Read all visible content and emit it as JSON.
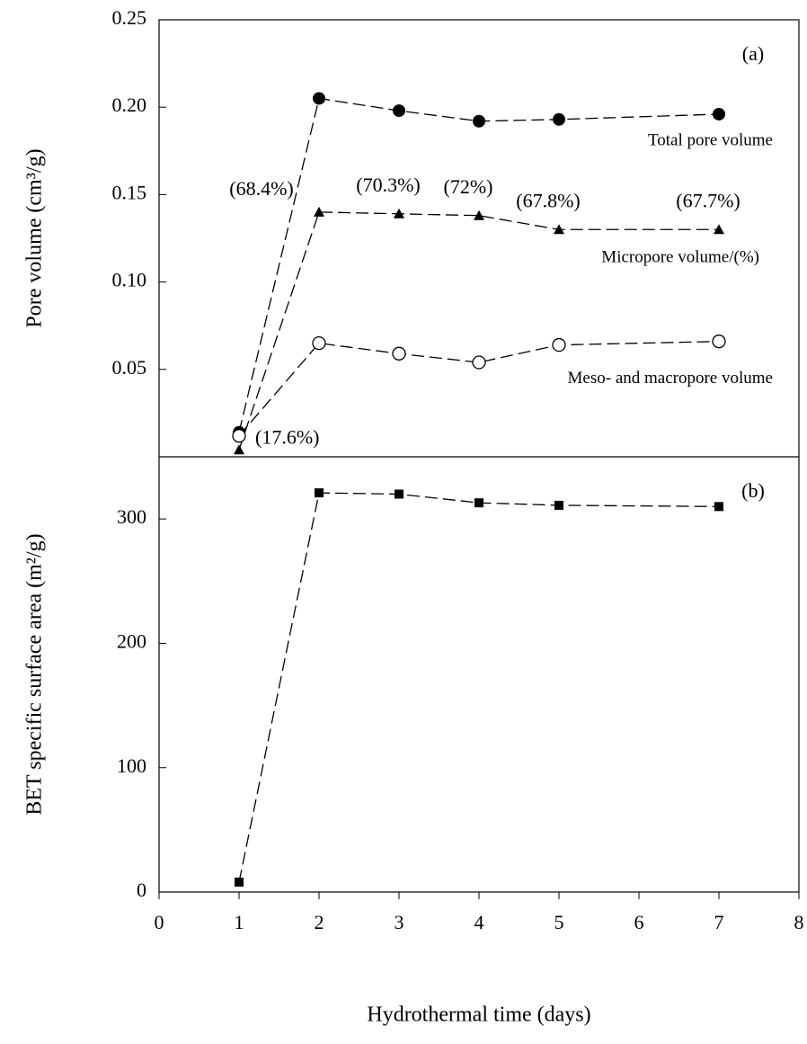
{
  "chart_data": [
    {
      "type": "line",
      "panel_label": "(a)",
      "ylabel": "Pore volume (cm³/g)",
      "x": [
        1,
        2,
        3,
        4,
        5,
        7
      ],
      "series": [
        {
          "name": "Total pore volume",
          "color": "#000000",
          "marker": "circle",
          "values": [
            0.014,
            0.205,
            0.198,
            0.192,
            0.193,
            0.196
          ]
        },
        {
          "name": "Micropore volume/(%)",
          "color": "#000000",
          "marker": "triangle",
          "values": [
            0.004,
            0.14,
            0.139,
            0.138,
            0.13,
            0.13
          ],
          "point_labels": [
            "(17.6%)",
            "(68.4%)",
            "(70.3%)",
            "(72%)",
            "(67.8%)",
            "(67.7%)"
          ]
        },
        {
          "name": "Meso- and macropore volume",
          "color": "#000000",
          "marker": "open-circle",
          "values": [
            0.012,
            0.065,
            0.059,
            0.054,
            0.064,
            0.066
          ]
        }
      ],
      "xlim": [
        0,
        8
      ],
      "ylim": [
        0,
        0.25
      ],
      "yticks": [
        0.05,
        {
          "value": 0.1,
          "label": "0.10"
        },
        0.15,
        {
          "value": 0.2,
          "label": "0.20"
        },
        0.25
      ]
    },
    {
      "type": "line",
      "panel_label": "(b)",
      "ylabel": "BET specific surface area (m²/g)",
      "xlabel": "Hydrothermal time (days)",
      "x": [
        1,
        2,
        3,
        4,
        5,
        7
      ],
      "series": [
        {
          "color": "#000000",
          "marker": "square",
          "values": [
            8,
            321,
            320,
            313,
            311,
            310
          ]
        }
      ],
      "xlim": [
        0,
        8
      ],
      "ylim": [
        0,
        350
      ],
      "xticks": [
        0,
        1,
        2,
        3,
        4,
        5,
        6,
        7,
        8
      ],
      "yticks": [
        0,
        100,
        200,
        300
      ]
    }
  ]
}
